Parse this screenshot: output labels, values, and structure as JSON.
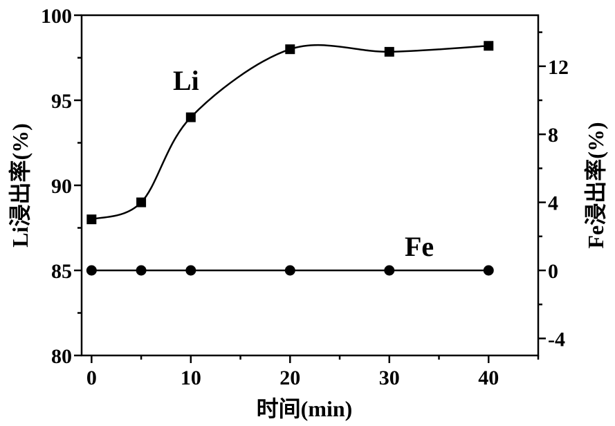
{
  "chart_data": {
    "type": "line",
    "xlabel": "时间(min)",
    "ylabel_left": "Li浸出率(%)",
    "ylabel_right": "Fe浸出率(%)",
    "xlim": [
      -1,
      45
    ],
    "ylim_left": [
      80,
      100
    ],
    "ylim_right": [
      -5,
      15
    ],
    "x_ticks": [
      0,
      10,
      20,
      30,
      40
    ],
    "y_left_ticks": [
      80,
      85,
      90,
      95,
      100
    ],
    "y_right_ticks": [
      -4,
      0,
      4,
      8,
      12
    ],
    "x": [
      0,
      5,
      10,
      20,
      30,
      40
    ],
    "series": [
      {
        "name": "Li",
        "axis": "left",
        "marker": "square",
        "values": [
          88.0,
          89.0,
          94.0,
          98.0,
          97.85,
          98.2
        ]
      },
      {
        "name": "Fe",
        "axis": "right",
        "marker": "circle",
        "values": [
          0,
          0,
          0,
          0,
          0,
          0
        ]
      }
    ],
    "grid": false
  }
}
